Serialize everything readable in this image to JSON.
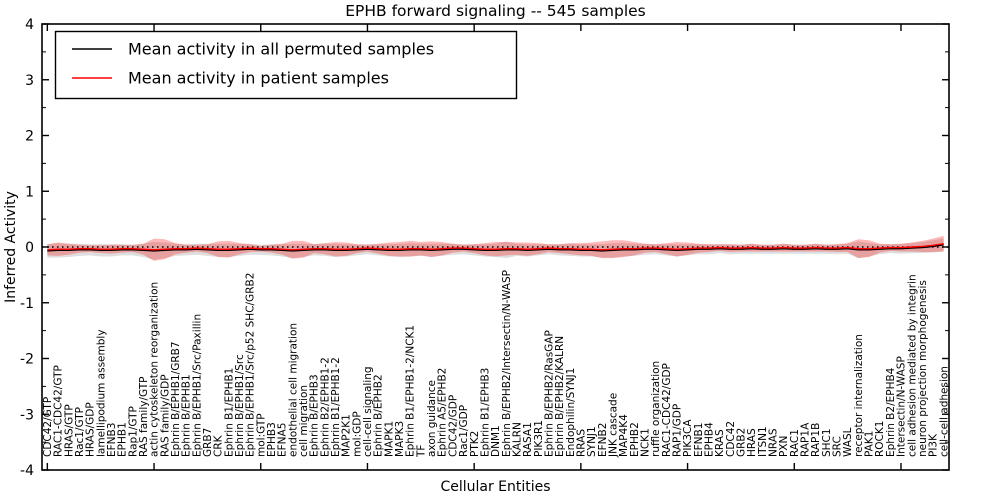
{
  "figure": {
    "title": "EPHB forward signaling -- 545 samples",
    "xlabel": "Cellular Entities",
    "ylabel": "Inferred Activity"
  },
  "legend": {
    "position": "upper-left",
    "items": [
      {
        "label": "Mean activity in all permuted samples",
        "color": "#000000"
      },
      {
        "label": "Mean activity in patient samples",
        "color": "#ff0000"
      }
    ]
  },
  "colors": {
    "permuted_line": "#000000",
    "patient_line": "#ff0000",
    "permuted_band": "#000000",
    "permuted_band_alpha": 0.13,
    "patient_band": "#ff0000",
    "patient_band_alpha": 0.28,
    "zero_line": "#000000",
    "frame": "#000000",
    "background": "#ffffff"
  },
  "chart_data": {
    "type": "line",
    "title": "EPHB forward signaling -- 545 samples",
    "xlabel": "Cellular Entities",
    "ylabel": "Inferred Activity",
    "ylim": [
      -4,
      4
    ],
    "yticks": [
      -4,
      -3,
      -2,
      -1,
      0,
      1,
      2,
      3,
      4
    ],
    "ytick_labels": [
      "-4",
      "-3",
      "-2",
      "-1",
      "0",
      "1",
      "2",
      "3",
      "4"
    ],
    "y_minor_step": 0.5,
    "xtick_every": 10,
    "grid": false,
    "zero_line": {
      "style": "dashed",
      "y": 0
    },
    "categories": [
      "CDC42/GTP",
      "RAC1-CDC42/GTP",
      "HRAS/GTP",
      "Rac1/GTP",
      "HRAS/GDP",
      "lamellipodium assembly",
      "EFNB3",
      "EPHB1",
      "Rap1/GTP",
      "RAS family/GTP",
      "actin cytoskeleton reorganization",
      "RAS family/GDP",
      "Ephrin B/EPHB1/GRB7",
      "Ephrin B/EPHB1",
      "Ephrin B/EPHB1/Src/Paxillin",
      "GRB7",
      "CRK",
      "Ephrin B1/EPHB1",
      "Ephrin B/EPHB1/Src",
      "Ephrin B/EPHB1/Src/p52 SHC/GRB2",
      "mol:GTP",
      "EPHB3",
      "EFNA5",
      "endothelial cell migration",
      "cell migration",
      "Ephrin B/EPHB3",
      "Ephrin B2/EPHB1-2",
      "Ephrin B1/EPHB1-2",
      "MAP2K1",
      "mol:GDP",
      "cell-cell signaling",
      "Ephrin B/EPHB2",
      "MAPK1",
      "MAPK3",
      "Ephrin B1/EPHB1-2/NCK1",
      "TF",
      "axon guidance",
      "Ephrin A5/EPHB2",
      "CDC42/GDP",
      "Rac1/GDP",
      "PTK2",
      "Ephrin B1/EPHB3",
      "DNM1",
      "Ephrin B/EPHB2/Intersectin/N-WASP",
      "KALRN",
      "RASA1",
      "PIK3R1",
      "Ephrin B/EPHB2/RasGAP",
      "Ephrin B/EPHB2/KALRN",
      "Endophilin/SYNJ1",
      "RRAS",
      "SYNJ1",
      "EFNB2",
      "JNK cascade",
      "MAP4K4",
      "EPHB2",
      "NCK1",
      "ruffle organization",
      "RAC1-CDC42/GDP",
      "RAP1/GDP",
      "PIK3CA",
      "EFNB1",
      "EPHB4",
      "KRAS",
      "CDC42",
      "GRB2",
      "HRAS",
      "ITSN1",
      "NRAS",
      "PXN",
      "RAC1",
      "RAP1A",
      "RAP1B",
      "SHC1",
      "SRC",
      "WASL",
      "receptor internalization",
      "PAK1",
      "ROCK1",
      "Ephrin B2/EPHB4",
      "Intersectin/N-WASP",
      "cell adhesion mediated by integrin",
      "neuron projection morphogenesis",
      "PI3K",
      "cell-cell adhesion"
    ],
    "series": [
      {
        "name": "Mean activity in all permuted samples",
        "color": "#000000",
        "band_alpha": 0.13,
        "values": [
          -0.07,
          -0.06,
          -0.06,
          -0.05,
          -0.05,
          -0.06,
          -0.06,
          -0.05,
          -0.05,
          -0.06,
          -0.07,
          -0.06,
          -0.05,
          -0.05,
          -0.04,
          -0.05,
          -0.06,
          -0.06,
          -0.05,
          -0.04,
          -0.05,
          -0.05,
          -0.06,
          -0.07,
          -0.06,
          -0.05,
          -0.05,
          -0.06,
          -0.06,
          -0.05,
          -0.04,
          -0.05,
          -0.06,
          -0.06,
          -0.05,
          -0.05,
          -0.06,
          -0.05,
          -0.04,
          -0.04,
          -0.05,
          -0.06,
          -0.06,
          -0.05,
          -0.05,
          -0.06,
          -0.05,
          -0.04,
          -0.05,
          -0.05,
          -0.06,
          -0.06,
          -0.07,
          -0.06,
          -0.05,
          -0.05,
          -0.04,
          -0.04,
          -0.05,
          -0.06,
          -0.05,
          -0.04,
          -0.04,
          -0.03,
          -0.04,
          -0.04,
          -0.03,
          -0.04,
          -0.04,
          -0.03,
          -0.04,
          -0.04,
          -0.03,
          -0.04,
          -0.04,
          -0.03,
          -0.05,
          -0.05,
          -0.04,
          -0.03,
          -0.03,
          -0.02,
          -0.01,
          0.01,
          0.04
        ],
        "band_halfwidth": [
          0.12,
          0.13,
          0.12,
          0.11,
          0.1,
          0.11,
          0.11,
          0.1,
          0.1,
          0.12,
          0.16,
          0.14,
          0.11,
          0.1,
          0.1,
          0.11,
          0.12,
          0.12,
          0.11,
          0.1,
          0.09,
          0.1,
          0.11,
          0.13,
          0.12,
          0.1,
          0.11,
          0.12,
          0.11,
          0.1,
          0.09,
          0.1,
          0.11,
          0.12,
          0.12,
          0.11,
          0.12,
          0.11,
          0.1,
          0.09,
          0.1,
          0.11,
          0.12,
          0.15,
          0.11,
          0.11,
          0.1,
          0.09,
          0.1,
          0.11,
          0.11,
          0.11,
          0.12,
          0.13,
          0.12,
          0.11,
          0.1,
          0.09,
          0.1,
          0.11,
          0.1,
          0.09,
          0.09,
          0.08,
          0.09,
          0.08,
          0.09,
          0.08,
          0.08,
          0.09,
          0.08,
          0.08,
          0.09,
          0.08,
          0.09,
          0.09,
          0.15,
          0.12,
          0.09,
          0.08,
          0.09,
          0.09,
          0.1,
          0.11,
          0.12
        ]
      },
      {
        "name": "Mean activity in patient samples",
        "color": "#ff0000",
        "band_alpha": 0.28,
        "values": [
          -0.05,
          -0.04,
          -0.04,
          -0.03,
          -0.03,
          -0.04,
          -0.04,
          -0.03,
          -0.03,
          -0.04,
          -0.05,
          -0.04,
          -0.03,
          -0.03,
          -0.02,
          -0.03,
          -0.04,
          -0.04,
          -0.03,
          -0.02,
          -0.03,
          -0.03,
          -0.04,
          -0.05,
          -0.04,
          -0.03,
          -0.03,
          -0.04,
          -0.04,
          -0.03,
          -0.02,
          -0.03,
          -0.04,
          -0.04,
          -0.03,
          -0.03,
          -0.04,
          -0.03,
          -0.02,
          -0.02,
          -0.03,
          -0.04,
          -0.04,
          -0.03,
          -0.03,
          -0.04,
          -0.03,
          -0.02,
          -0.03,
          -0.03,
          -0.04,
          -0.04,
          -0.05,
          -0.04,
          -0.03,
          -0.03,
          -0.02,
          -0.02,
          -0.03,
          -0.04,
          -0.03,
          -0.02,
          -0.02,
          -0.01,
          -0.02,
          -0.02,
          -0.01,
          -0.02,
          -0.02,
          -0.01,
          -0.02,
          -0.02,
          -0.01,
          -0.02,
          -0.02,
          -0.01,
          -0.03,
          -0.03,
          -0.02,
          -0.01,
          -0.01,
          0.0,
          0.01,
          0.03,
          0.06
        ],
        "band_halfwidth": [
          0.1,
          0.12,
          0.1,
          0.07,
          0.06,
          0.07,
          0.08,
          0.07,
          0.06,
          0.1,
          0.2,
          0.18,
          0.1,
          0.07,
          0.06,
          0.08,
          0.14,
          0.15,
          0.1,
          0.07,
          0.05,
          0.07,
          0.1,
          0.16,
          0.15,
          0.08,
          0.1,
          0.13,
          0.12,
          0.08,
          0.06,
          0.09,
          0.12,
          0.13,
          0.14,
          0.12,
          0.14,
          0.12,
          0.08,
          0.06,
          0.08,
          0.11,
          0.13,
          0.12,
          0.11,
          0.12,
          0.1,
          0.07,
          0.08,
          0.1,
          0.11,
          0.12,
          0.15,
          0.16,
          0.15,
          0.12,
          0.08,
          0.07,
          0.1,
          0.13,
          0.11,
          0.08,
          0.07,
          0.06,
          0.07,
          0.06,
          0.07,
          0.06,
          0.06,
          0.07,
          0.06,
          0.06,
          0.07,
          0.06,
          0.07,
          0.08,
          0.17,
          0.15,
          0.08,
          0.06,
          0.07,
          0.08,
          0.1,
          0.12,
          0.14
        ]
      }
    ]
  }
}
